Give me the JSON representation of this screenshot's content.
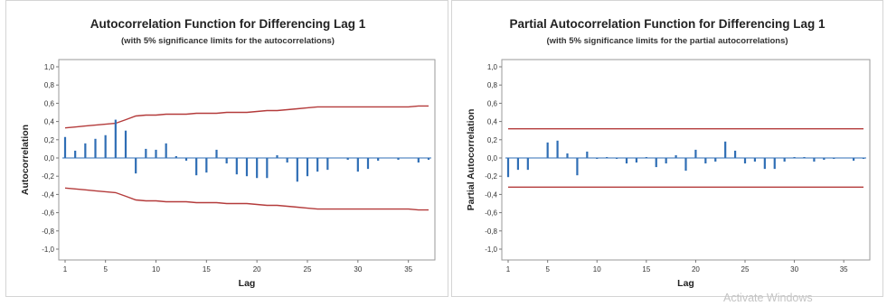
{
  "watermark": "Activate Windows",
  "chart_data": [
    {
      "type": "bar",
      "title": "Autocorrelation Function for Differencing Lag 1",
      "subtitle": "(with 5% significance limits for the autocorrelations)",
      "xlabel": "Lag",
      "ylabel": "Autocorrelation",
      "xlim": [
        1,
        37
      ],
      "ylim": [
        -1.0,
        1.0
      ],
      "xticks": [
        1,
        5,
        10,
        15,
        20,
        25,
        30,
        35
      ],
      "yticks": [
        "-1,0",
        "-0,8",
        "-0,6",
        "-0,4",
        "-0,2",
        "0,0",
        "0,2",
        "0,4",
        "0,6",
        "0,8",
        "1,0"
      ],
      "lags": [
        1,
        2,
        3,
        4,
        5,
        6,
        7,
        8,
        9,
        10,
        11,
        12,
        13,
        14,
        15,
        16,
        17,
        18,
        19,
        20,
        21,
        22,
        23,
        24,
        25,
        26,
        27,
        28,
        29,
        30,
        31,
        32,
        33,
        34,
        35,
        36,
        37
      ],
      "values": [
        0.23,
        0.08,
        0.16,
        0.21,
        0.25,
        0.42,
        0.3,
        -0.17,
        0.1,
        0.09,
        0.16,
        0.02,
        -0.03,
        -0.19,
        -0.16,
        0.09,
        -0.06,
        -0.18,
        -0.2,
        -0.22,
        -0.22,
        0.03,
        -0.05,
        -0.26,
        -0.2,
        -0.15,
        -0.13,
        0.0,
        -0.02,
        -0.15,
        -0.12,
        -0.03,
        0.0,
        -0.02,
        0.0,
        -0.05,
        -0.02
      ],
      "significance_limit": [
        0.33,
        0.34,
        0.35,
        0.36,
        0.37,
        0.38,
        0.42,
        0.46,
        0.47,
        0.47,
        0.48,
        0.48,
        0.48,
        0.49,
        0.49,
        0.49,
        0.5,
        0.5,
        0.5,
        0.51,
        0.52,
        0.52,
        0.53,
        0.54,
        0.55,
        0.56,
        0.56,
        0.56,
        0.56,
        0.56,
        0.56,
        0.56,
        0.56,
        0.56,
        0.56,
        0.57,
        0.57
      ],
      "limit_color": "#b43b3b",
      "bar_color": "#2f6eb5",
      "grid": false
    },
    {
      "type": "bar",
      "title": "Partial Autocorrelation Function for Differencing Lag 1",
      "subtitle": "(with 5% significance limits for the partial autocorrelations)",
      "xlabel": "Lag",
      "ylabel": "Partial Autocorrelation",
      "xlim": [
        1,
        37
      ],
      "ylim": [
        -1.0,
        1.0
      ],
      "xticks": [
        1,
        5,
        10,
        15,
        20,
        25,
        30,
        35
      ],
      "yticks": [
        "-1,0",
        "-0,8",
        "-0,6",
        "-0,4",
        "-0,2",
        "0,0",
        "0,2",
        "0,4",
        "0,6",
        "0,8",
        "1,0"
      ],
      "lags": [
        1,
        2,
        3,
        4,
        5,
        6,
        7,
        8,
        9,
        10,
        11,
        12,
        13,
        14,
        15,
        16,
        17,
        18,
        19,
        20,
        21,
        22,
        23,
        24,
        25,
        26,
        27,
        28,
        29,
        30,
        31,
        32,
        33,
        34,
        35,
        36,
        37
      ],
      "values": [
        -0.21,
        -0.13,
        -0.13,
        0.0,
        0.17,
        0.19,
        0.05,
        -0.19,
        0.07,
        -0.01,
        0.01,
        -0.01,
        -0.06,
        -0.05,
        0.01,
        -0.1,
        -0.06,
        0.03,
        -0.14,
        0.09,
        -0.06,
        -0.04,
        0.18,
        0.08,
        -0.06,
        -0.04,
        -0.12,
        -0.12,
        -0.04,
        0.01,
        0.01,
        -0.04,
        -0.02,
        -0.01,
        0.0,
        -0.03,
        -0.01
      ],
      "significance_limit": 0.32,
      "limit_color": "#b43b3b",
      "bar_color": "#2f6eb5",
      "grid": false
    }
  ]
}
